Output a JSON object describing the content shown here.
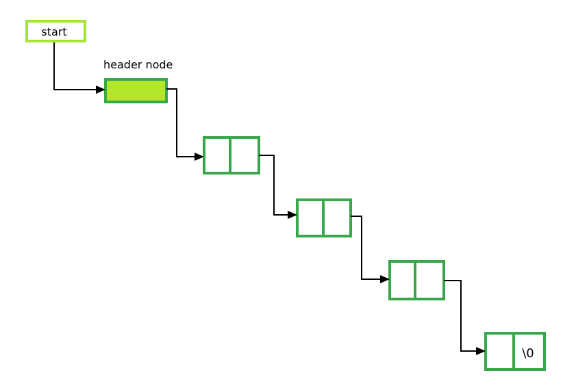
{
  "start_label": "start",
  "header_label": "header node",
  "null_label": "\\0",
  "colors": {
    "start_border": "#a6e43a",
    "node_border": "#39a84a",
    "header_fill": "#b3e52a",
    "text": "#000000"
  }
}
